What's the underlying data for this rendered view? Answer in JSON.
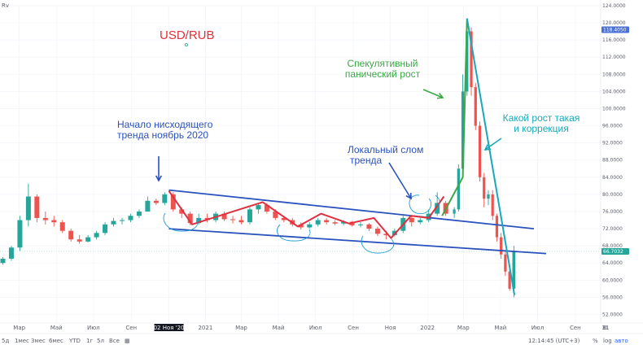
{
  "header": {
    "symbol": "USD/RUB",
    "corner_label": "Rv"
  },
  "chart_data": {
    "type": "candlestick",
    "title": "USD/RUB",
    "y_axis_side": "right",
    "ylim": [
      50,
      124
    ],
    "y_ticks": [
      "124.0000",
      "120.0000",
      "116.0000",
      "112.0000",
      "108.0000",
      "104.0000",
      "100.0000",
      "96.0000",
      "92.0000",
      "88.0000",
      "84.0000",
      "80.0000",
      "76.0000",
      "72.0000",
      "68.0000",
      "64.0000",
      "60.0000",
      "56.0000",
      "52.0000"
    ],
    "price_labels": {
      "marker_top": "118.4050",
      "last_price": "66.7032"
    },
    "x_ticks": [
      "Мар",
      "Май",
      "Июл",
      "Сен",
      "02 Ноя '20",
      "2021",
      "Мар",
      "Май",
      "Июл",
      "Сен",
      "Ноя",
      "2022",
      "Мар",
      "Май",
      "Июл",
      "Сен",
      "31"
    ],
    "x_range": [
      "2020-02-01",
      "2022-10-10"
    ],
    "candles": [
      {
        "date": "2020-02-03",
        "o": 64,
        "h": 65.4,
        "l": 63.6,
        "c": 65
      },
      {
        "date": "2020-02-17",
        "o": 65,
        "h": 68,
        "l": 64.5,
        "c": 67.6
      },
      {
        "date": "2020-03-02",
        "o": 67.6,
        "h": 75,
        "l": 66.8,
        "c": 74
      },
      {
        "date": "2020-03-16",
        "o": 74,
        "h": 82.5,
        "l": 72.5,
        "c": 79.5
      },
      {
        "date": "2020-03-30",
        "o": 79.5,
        "h": 80,
        "l": 73.5,
        "c": 74.5
      },
      {
        "date": "2020-04-13",
        "o": 74.5,
        "h": 76,
        "l": 73,
        "c": 74
      },
      {
        "date": "2020-04-27",
        "o": 74,
        "h": 75,
        "l": 72.5,
        "c": 73.5
      },
      {
        "date": "2020-05-11",
        "o": 73.5,
        "h": 74,
        "l": 71,
        "c": 71.5
      },
      {
        "date": "2020-05-25",
        "o": 71.5,
        "h": 72,
        "l": 69,
        "c": 69.5
      },
      {
        "date": "2020-06-08",
        "o": 69.5,
        "h": 70.5,
        "l": 68.5,
        "c": 69
      },
      {
        "date": "2020-06-22",
        "o": 69,
        "h": 70.5,
        "l": 68.8,
        "c": 70
      },
      {
        "date": "2020-07-06",
        "o": 70,
        "h": 71.5,
        "l": 69.5,
        "c": 71
      },
      {
        "date": "2020-07-20",
        "o": 71,
        "h": 73.5,
        "l": 70.5,
        "c": 73
      },
      {
        "date": "2020-08-03",
        "o": 73,
        "h": 74.5,
        "l": 72.5,
        "c": 73.8
      },
      {
        "date": "2020-08-17",
        "o": 73.8,
        "h": 74.5,
        "l": 73,
        "c": 74
      },
      {
        "date": "2020-08-31",
        "o": 74,
        "h": 75.5,
        "l": 73.5,
        "c": 75
      },
      {
        "date": "2020-09-14",
        "o": 75,
        "h": 76.5,
        "l": 74.5,
        "c": 76
      },
      {
        "date": "2020-09-28",
        "o": 76,
        "h": 79.5,
        "l": 76,
        "c": 78.5
      },
      {
        "date": "2020-10-12",
        "o": 78.5,
        "h": 79,
        "l": 77.5,
        "c": 78
      },
      {
        "date": "2020-10-26",
        "o": 78,
        "h": 80.5,
        "l": 77.5,
        "c": 80
      },
      {
        "date": "2020-11-09",
        "o": 80,
        "h": 80.5,
        "l": 76,
        "c": 76.5
      },
      {
        "date": "2020-11-23",
        "o": 76.5,
        "h": 77,
        "l": 74.5,
        "c": 75.5
      },
      {
        "date": "2020-12-07",
        "o": 75.5,
        "h": 76,
        "l": 72.8,
        "c": 73.3
      },
      {
        "date": "2020-12-21",
        "o": 73.3,
        "h": 75.5,
        "l": 73,
        "c": 74.5
      },
      {
        "date": "2021-01-04",
        "o": 74.5,
        "h": 75.5,
        "l": 73.5,
        "c": 74
      },
      {
        "date": "2021-01-18",
        "o": 74,
        "h": 76,
        "l": 73.5,
        "c": 75.5
      },
      {
        "date": "2021-02-01",
        "o": 75.5,
        "h": 76,
        "l": 73.8,
        "c": 74.2
      },
      {
        "date": "2021-02-15",
        "o": 74.2,
        "h": 75,
        "l": 73.2,
        "c": 74
      },
      {
        "date": "2021-03-01",
        "o": 74,
        "h": 75,
        "l": 73,
        "c": 73.5
      },
      {
        "date": "2021-03-15",
        "o": 73.5,
        "h": 77,
        "l": 73,
        "c": 76.5
      },
      {
        "date": "2021-03-29",
        "o": 76.5,
        "h": 78,
        "l": 75.5,
        "c": 77.5
      },
      {
        "date": "2021-04-12",
        "o": 77.5,
        "h": 78,
        "l": 75.5,
        "c": 76
      },
      {
        "date": "2021-04-26",
        "o": 76,
        "h": 76.5,
        "l": 74,
        "c": 74.5
      },
      {
        "date": "2021-05-10",
        "o": 74.5,
        "h": 75,
        "l": 73.5,
        "c": 74
      },
      {
        "date": "2021-05-24",
        "o": 74,
        "h": 74.5,
        "l": 72.5,
        "c": 73
      },
      {
        "date": "2021-06-07",
        "o": 73,
        "h": 73.5,
        "l": 71.8,
        "c": 72.3
      },
      {
        "date": "2021-06-21",
        "o": 72.3,
        "h": 73.5,
        "l": 72,
        "c": 73
      },
      {
        "date": "2021-07-05",
        "o": 73,
        "h": 74.5,
        "l": 72.5,
        "c": 74
      },
      {
        "date": "2021-07-19",
        "o": 74,
        "h": 74.5,
        "l": 73,
        "c": 73.5
      },
      {
        "date": "2021-08-02",
        "o": 73.5,
        "h": 74,
        "l": 72.8,
        "c": 73.2
      },
      {
        "date": "2021-08-16",
        "o": 73.2,
        "h": 74,
        "l": 72.8,
        "c": 73.6
      },
      {
        "date": "2021-08-30",
        "o": 73.6,
        "h": 73.8,
        "l": 72.5,
        "c": 72.8
      },
      {
        "date": "2021-09-13",
        "o": 72.8,
        "h": 73.5,
        "l": 72.3,
        "c": 73
      },
      {
        "date": "2021-09-27",
        "o": 73,
        "h": 73.3,
        "l": 71.5,
        "c": 72
      },
      {
        "date": "2021-10-11",
        "o": 72,
        "h": 72.5,
        "l": 70.3,
        "c": 70.8
      },
      {
        "date": "2021-10-25",
        "o": 70.8,
        "h": 71.5,
        "l": 69.5,
        "c": 70.5
      },
      {
        "date": "2021-11-08",
        "o": 70.5,
        "h": 72,
        "l": 70.2,
        "c": 71.5
      },
      {
        "date": "2021-11-22",
        "o": 71.5,
        "h": 75,
        "l": 71,
        "c": 74.5
      },
      {
        "date": "2021-12-06",
        "o": 74.5,
        "h": 74.8,
        "l": 72.5,
        "c": 73.5
      },
      {
        "date": "2021-12-20",
        "o": 73.5,
        "h": 74.5,
        "l": 73,
        "c": 74
      },
      {
        "date": "2022-01-03",
        "o": 74,
        "h": 76.5,
        "l": 73.5,
        "c": 75.5
      },
      {
        "date": "2022-01-17",
        "o": 75.5,
        "h": 80.5,
        "l": 75,
        "c": 78
      },
      {
        "date": "2022-01-31",
        "o": 78,
        "h": 78.5,
        "l": 75,
        "c": 75.5
      },
      {
        "date": "2022-02-14",
        "o": 75.5,
        "h": 77,
        "l": 74.5,
        "c": 76.5
      },
      {
        "date": "2022-02-21",
        "o": 76.5,
        "h": 87,
        "l": 76,
        "c": 86
      },
      {
        "date": "2022-02-28",
        "o": 86,
        "h": 108,
        "l": 85,
        "c": 104
      },
      {
        "date": "2022-03-07",
        "o": 104,
        "h": 121,
        "l": 103,
        "c": 118
      },
      {
        "date": "2022-03-14",
        "o": 118,
        "h": 119,
        "l": 103,
        "c": 105
      },
      {
        "date": "2022-03-21",
        "o": 105,
        "h": 106,
        "l": 95,
        "c": 96
      },
      {
        "date": "2022-03-28",
        "o": 96,
        "h": 97,
        "l": 83,
        "c": 84
      },
      {
        "date": "2022-04-04",
        "o": 84,
        "h": 85,
        "l": 77,
        "c": 79
      },
      {
        "date": "2022-04-11",
        "o": 79,
        "h": 81,
        "l": 77.5,
        "c": 80
      },
      {
        "date": "2022-04-18",
        "o": 80,
        "h": 81,
        "l": 74,
        "c": 75
      },
      {
        "date": "2022-04-25",
        "o": 75,
        "h": 75.5,
        "l": 69,
        "c": 70
      },
      {
        "date": "2022-05-02",
        "o": 70,
        "h": 71,
        "l": 65,
        "c": 66
      },
      {
        "date": "2022-05-09",
        "o": 66,
        "h": 67,
        "l": 61,
        "c": 62
      },
      {
        "date": "2022-05-16",
        "o": 62,
        "h": 63,
        "l": 57.5,
        "c": 58
      },
      {
        "date": "2022-05-23",
        "o": 58,
        "h": 68,
        "l": 56,
        "c": 66.7
      }
    ],
    "trendlines": [
      {
        "name": "upper-channel",
        "color": "#2a52be",
        "points": [
          [
            "2020-11-02",
            81
          ],
          [
            "2022-06-25",
            72
          ]
        ]
      },
      {
        "name": "lower-channel",
        "color": "#2a52be",
        "points": [
          [
            "2020-11-02",
            72
          ],
          [
            "2022-07-15",
            66.2
          ]
        ]
      },
      {
        "name": "zigzag",
        "color": "#e03040",
        "points": [
          [
            "2020-11-02",
            80.8
          ],
          [
            "2020-12-10",
            73
          ],
          [
            "2021-04-05",
            78.2
          ],
          [
            "2021-06-02",
            72.5
          ],
          [
            "2021-07-10",
            75.5
          ],
          [
            "2021-08-25",
            73.2
          ],
          [
            "2021-10-05",
            74.5
          ],
          [
            "2021-11-02",
            69.8
          ],
          [
            "2021-12-05",
            75
          ],
          [
            "2022-01-03",
            74.5
          ],
          [
            "2022-01-28",
            79.5
          ]
        ]
      },
      {
        "name": "panic-rise",
        "color": "#3aa844",
        "points": [
          [
            "2022-01-25",
            75
          ],
          [
            "2022-02-28",
            84
          ],
          [
            "2022-03-07",
            121
          ]
        ]
      },
      {
        "name": "correction",
        "color": "#1aa8b8",
        "points": [
          [
            "2022-03-07",
            121
          ],
          [
            "2022-05-24",
            56.5
          ]
        ]
      }
    ],
    "annotations": [
      {
        "name": "start-downtrend",
        "lines": [
          "Начало нисходящего",
          "тренда ноябрь 2020"
        ],
        "color": "#2a52be"
      },
      {
        "name": "local-break",
        "lines": [
          "Локальный слом",
          "тренда"
        ],
        "color": "#2a52be"
      },
      {
        "name": "panic-rise",
        "lines": [
          "Спекулятивный",
          "панический рост"
        ],
        "color": "#3aa844"
      },
      {
        "name": "correction",
        "lines": [
          "Какой рост такая",
          "и коррекция"
        ],
        "color": "#1aa8b8"
      }
    ],
    "colors": {
      "up": "#26a69a",
      "down": "#ef5350",
      "symbol_title": "#e0303a",
      "grid": "#f0f3fa"
    },
    "grid": true
  },
  "toolbar": {
    "ranges": [
      "5д",
      "1мес",
      "3мес",
      "6мес",
      "YTD",
      "1г",
      "5л",
      "Все"
    ],
    "time": "12:14:45 (UTC+3)",
    "items": [
      "%",
      "log",
      "авто"
    ]
  }
}
